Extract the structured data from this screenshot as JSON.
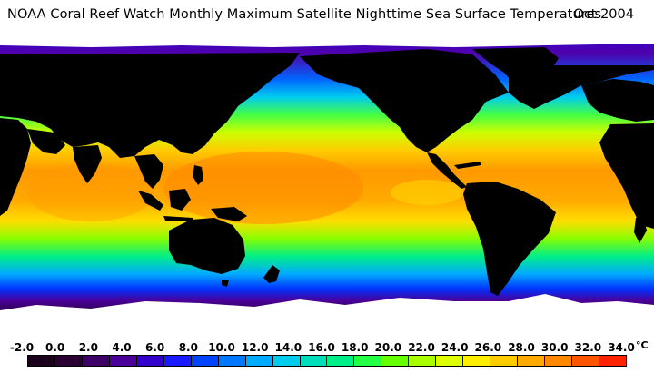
{
  "title": {
    "main": "NOAA Coral Reef Watch Monthly Maximum Satellite Nighttime Sea Surface Temperatures",
    "date": "Oct 2004"
  },
  "colorbar": {
    "tick_labels": [
      "-2.0",
      "0.0",
      "2.0",
      "4.0",
      "6.0",
      "8.0",
      "10.0",
      "12.0",
      "14.0",
      "16.0",
      "18.0",
      "20.0",
      "22.0",
      "24.0",
      "26.0",
      "28.0",
      "30.0",
      "32.0",
      "34.0"
    ],
    "unit": "°C",
    "colors": [
      "#1a001a",
      "#2a0033",
      "#3d0066",
      "#4a0099",
      "#3300cc",
      "#1a1aff",
      "#0044ff",
      "#0077ff",
      "#00aaff",
      "#00ccee",
      "#00ddbb",
      "#00ee88",
      "#22ff44",
      "#66ff00",
      "#aaff00",
      "#ddff00",
      "#ffee00",
      "#ffcc00",
      "#ffaa00",
      "#ff8800",
      "#ff5500",
      "#ff2200"
    ]
  },
  "map": {
    "land_color": "#000000",
    "sea_ice_color": "#ffffff"
  }
}
